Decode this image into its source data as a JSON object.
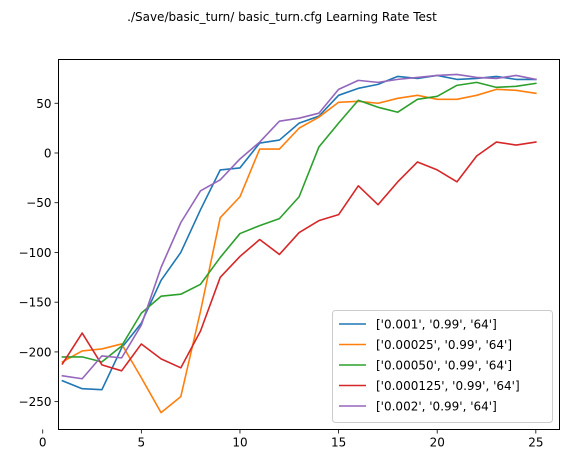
{
  "chart_data": {
    "type": "line",
    "title": "./Save/basic_turn/ basic_turn.cfg Learning Rate Test",
    "xlabel": "",
    "ylabel": "",
    "xlim": [
      0.8,
      26.2
    ],
    "ylim": [
      -278,
      94
    ],
    "xticks": [
      0,
      5,
      10,
      15,
      20,
      25
    ],
    "yticks": [
      -250,
      -200,
      -150,
      -100,
      -50,
      0,
      50
    ],
    "ytick_labels": [
      "−250",
      "−200",
      "−150",
      "−100",
      "−50",
      "0",
      "50"
    ],
    "legend_position": "lower-right",
    "x": [
      1,
      2,
      3,
      4,
      5,
      6,
      7,
      8,
      9,
      10,
      11,
      12,
      13,
      14,
      15,
      16,
      17,
      18,
      19,
      20,
      21,
      22,
      23,
      24,
      25
    ],
    "series": [
      {
        "name": "['0.001', '0.99', '64']",
        "color": "#1f77b4",
        "values": [
          -229,
          -237,
          -238,
          -196,
          -171,
          -128,
          -100,
          -57,
          -17,
          -15,
          10,
          13,
          30,
          37,
          58,
          65,
          69,
          77,
          75,
          78,
          74,
          75,
          77,
          74,
          74
        ]
      },
      {
        "name": "['0.00025', '0.99', '64']",
        "color": "#ff7f0e",
        "values": [
          -210,
          -199,
          -197,
          -192,
          -226,
          -261,
          -245,
          -159,
          -65,
          -44,
          4,
          4,
          25,
          36,
          51,
          52,
          50,
          55,
          58,
          54,
          54,
          58,
          64,
          63,
          60
        ]
      },
      {
        "name": "['0.00050', '0.99', '64']",
        "color": "#2ca02c",
        "values": [
          -205,
          -205,
          -210,
          -194,
          -161,
          -144,
          -142,
          -132,
          -105,
          -81,
          -73,
          -66,
          -44,
          6,
          30,
          53,
          46,
          41,
          54,
          57,
          68,
          71,
          66,
          67,
          70
        ]
      },
      {
        "name": "['0.000125', '0.99', '64']",
        "color": "#d62728",
        "values": [
          -212,
          -181,
          -213,
          -219,
          -192,
          -207,
          -216,
          -179,
          -125,
          -104,
          -87,
          -102,
          -80,
          -68,
          -62,
          -33,
          -52,
          -29,
          -9,
          -17,
          -29,
          -3,
          11,
          8,
          11
        ]
      },
      {
        "name": "['0.002', '0.99', '64']",
        "color": "#9467bd",
        "values": [
          -224,
          -227,
          -204,
          -206,
          -173,
          -115,
          -70,
          -38,
          -27,
          -6,
          11,
          32,
          35,
          40,
          64,
          73,
          71,
          74,
          76,
          78,
          79,
          76,
          75,
          78,
          74
        ]
      }
    ]
  }
}
